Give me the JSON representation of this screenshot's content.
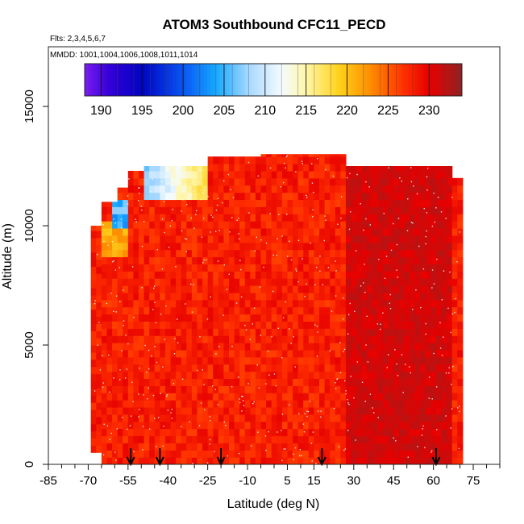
{
  "chart_data": {
    "type": "heatmap",
    "title": "ATOM3 Southbound CFC11_PECD",
    "subtitle_lines": [
      "Flts: 2,3,4,5,6,7",
      "MMDD: 1001,1004,1006,1008,1011,1014"
    ],
    "xlabel": "Latitude (deg N)",
    "ylabel": "Altitude (m)",
    "xlim": [
      -85,
      85
    ],
    "ylim": [
      0,
      17500
    ],
    "x_ticks": [
      -85,
      -70,
      -55,
      -40,
      -25,
      -10,
      5,
      15,
      30,
      45,
      60,
      75
    ],
    "x_minor_ticks": [
      -80,
      -75,
      -65,
      -60,
      -50,
      -45,
      -35,
      -30,
      -20,
      -15,
      -5,
      0,
      10,
      20,
      25,
      35,
      40,
      50,
      55,
      65,
      70,
      80,
      85
    ],
    "y_ticks": [
      0,
      5000,
      10000,
      15000
    ],
    "colorbar": {
      "range": [
        188,
        234
      ],
      "ticks": [
        190,
        195,
        200,
        205,
        210,
        215,
        220,
        225,
        230
      ],
      "stops": [
        {
          "v": 188,
          "c": "#7a1ef0"
        },
        {
          "v": 191,
          "c": "#3500d8"
        },
        {
          "v": 195,
          "c": "#0004c2"
        },
        {
          "v": 200,
          "c": "#0a55f2"
        },
        {
          "v": 204,
          "c": "#15a8ff"
        },
        {
          "v": 208,
          "c": "#a8d8ff"
        },
        {
          "v": 212,
          "c": "#f4fbff"
        },
        {
          "v": 215,
          "c": "#fff6a8"
        },
        {
          "v": 219,
          "c": "#ffd21a"
        },
        {
          "v": 223,
          "c": "#ff8a00"
        },
        {
          "v": 227,
          "c": "#ff2e00"
        },
        {
          "v": 230,
          "c": "#e60000"
        },
        {
          "v": 232,
          "c": "#c01010"
        },
        {
          "v": 234,
          "c": "#8a2424"
        }
      ]
    },
    "flight_markers_lat": [
      -54,
      -43,
      -20,
      18,
      61
    ],
    "coverage": [
      {
        "lat": [
          -69,
          -65
        ],
        "alt": [
          500,
          10000
        ]
      },
      {
        "lat": [
          -65,
          -60
        ],
        "alt": [
          0,
          11000
        ]
      },
      {
        "lat": [
          -60,
          -55
        ],
        "alt": [
          0,
          11600
        ]
      },
      {
        "lat": [
          -55,
          -50
        ],
        "alt": [
          0,
          12300
        ]
      },
      {
        "lat": [
          -50,
          -25
        ],
        "alt": [
          0,
          12500
        ]
      },
      {
        "lat": [
          -25,
          -5
        ],
        "alt": [
          0,
          12900
        ]
      },
      {
        "lat": [
          -5,
          27
        ],
        "alt": [
          0,
          13000
        ]
      },
      {
        "lat": [
          27,
          66
        ],
        "alt": [
          0,
          12500
        ]
      },
      {
        "lat": [
          66,
          70
        ],
        "alt": [
          0,
          12000
        ]
      },
      {
        "lat": [
          70,
          71
        ],
        "alt": [
          0,
          5000
        ]
      }
    ],
    "features": [
      {
        "lat": [
          -50,
          -25
        ],
        "alt": [
          11000,
          12500
        ],
        "value_south": 207,
        "value_north": 219
      },
      {
        "lat": [
          -62,
          -55
        ],
        "alt": [
          9800,
          11000
        ],
        "value": 205
      },
      {
        "lat": [
          -66,
          -55
        ],
        "alt": [
          8500,
          10000
        ],
        "value": 221
      },
      {
        "lat": [
          27,
          66
        ],
        "alt": [
          0,
          12500
        ],
        "value": 231
      }
    ],
    "base_value": 228
  }
}
